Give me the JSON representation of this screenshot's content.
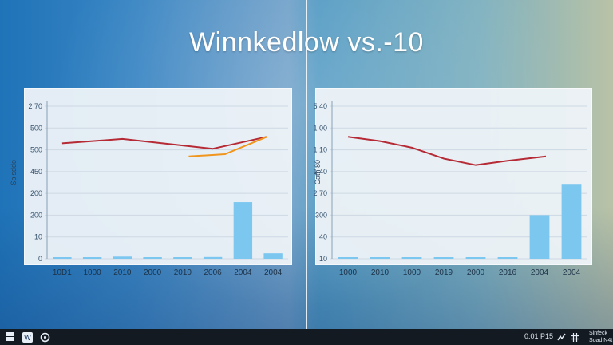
{
  "title": "Winnkedlow vs.-10",
  "taskbar": {
    "clock": "0.01 P15",
    "tray_text_1": "Sinfeck",
    "tray_text_2": "Soad.N4t"
  },
  "chart_data": [
    {
      "type": "bar",
      "ylabel": "Solsddo",
      "y_ticks": [
        "2 70",
        "500",
        "500",
        "450",
        "200",
        "200",
        "10",
        "0"
      ],
      "categories": [
        "10D1",
        "1000",
        "2010",
        "2000",
        "2010",
        "2006",
        "2004",
        "2004"
      ],
      "values": [
        5,
        5,
        10,
        5,
        7,
        8,
        260,
        25
      ],
      "series": [
        {
          "name": "",
          "color": "#b52a35",
          "x": [
            0,
            2,
            4,
            5,
            6.8
          ],
          "y": [
            530,
            550,
            520,
            505,
            560
          ]
        },
        {
          "name": "",
          "color": "#f0951d",
          "x": [
            4.2,
            5.4,
            6.8
          ],
          "y": [
            470,
            480,
            560
          ]
        }
      ],
      "ylim": [
        0,
        700
      ],
      "bar_color": "#7cc7ef"
    },
    {
      "type": "bar",
      "ylabel": "Cath 80",
      "y_ticks": [
        "5 40",
        "1 00",
        "1 10",
        "1 40",
        "2 70",
        "300",
        "40",
        "10"
      ],
      "categories": [
        "1000",
        "2010",
        "1000",
        "2019",
        "2000",
        "2016",
        "2004",
        "2004"
      ],
      "values": [
        0,
        0,
        0,
        5,
        5,
        5,
        200,
        340
      ],
      "series": [
        {
          "name": "",
          "color": "#b52a35",
          "x": [
            0,
            1,
            2,
            3,
            4,
            5,
            6.2
          ],
          "y": [
            560,
            540,
            510,
            460,
            430,
            450,
            470
          ]
        }
      ],
      "ylim": [
        0,
        700
      ],
      "bar_color": "#7cc7ef"
    }
  ]
}
